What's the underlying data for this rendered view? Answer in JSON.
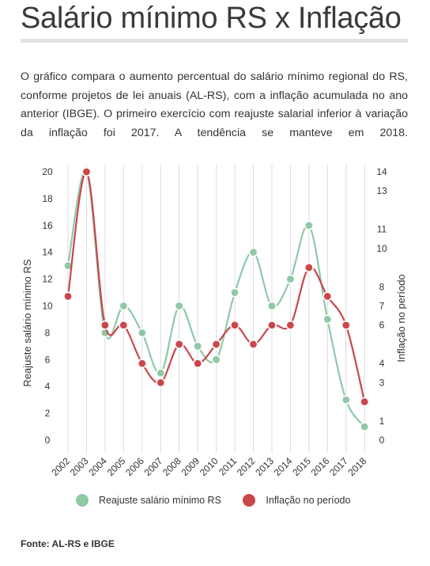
{
  "header": {
    "title": "Salário mínimo RS x Inflação",
    "description": "O gráfico compara o aumento percentual do salário mínimo regional do RS, conforme projetos de lei anuais (AL-RS), com a inflação acumulada no ano anterior (IBGE). O primeiro exercício com reajuste salarial inferior à variação da inflação foi 2017. A tendência se manteve em 2018."
  },
  "chart_data": {
    "type": "line",
    "categories": [
      "2002",
      "2003",
      "2004",
      "2005",
      "2006",
      "2007",
      "2008",
      "2009",
      "2010",
      "2011",
      "2012",
      "2013",
      "2014",
      "2015",
      "2016",
      "2017",
      "2018"
    ],
    "series": [
      {
        "name": "Reajuste salário mínimo RS",
        "axis": "left",
        "color": "#8fc9a5",
        "values": [
          13,
          20,
          8,
          10,
          8,
          5,
          10,
          7,
          6,
          11,
          14,
          10,
          12,
          16,
          9,
          3,
          1
        ]
      },
      {
        "name": "Inflação no período",
        "axis": "right",
        "color": "#c9474b",
        "values": [
          7.5,
          14,
          6,
          6,
          4,
          3,
          5,
          4,
          5,
          6,
          5,
          6,
          6,
          9,
          7.5,
          6,
          2
        ]
      }
    ],
    "ylabel": "Reajuste salário mínimo RS",
    "y2label": "Inflação no período",
    "ylim": [
      0,
      20
    ],
    "y2lim": [
      0,
      14
    ],
    "yticks": [
      0,
      2,
      4,
      6,
      8,
      10,
      12,
      14,
      16,
      18,
      20
    ],
    "y2ticks": [
      0,
      1,
      3,
      4,
      6,
      7,
      8,
      10,
      11,
      13,
      14
    ],
    "grid": "vertical",
    "legend": "bottom"
  },
  "legend": {
    "items": [
      {
        "label": "Reajuste salário mínimo RS",
        "color": "#8fc9a5"
      },
      {
        "label": "Inflação no período",
        "color": "#c9474b"
      }
    ]
  },
  "footer": {
    "source": "Fonte: AL-RS e IBGE"
  }
}
